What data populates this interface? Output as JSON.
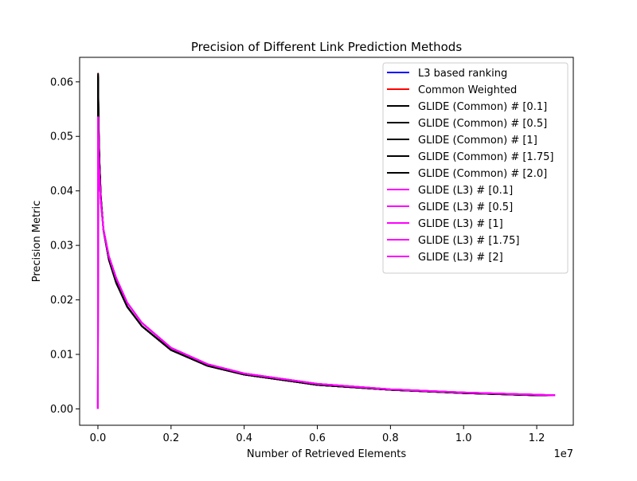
{
  "chart_data": {
    "type": "line",
    "title": "Precision of Different Link Prediction Methods",
    "xlabel": "Number of Retrieved Elements",
    "ylabel": "Precision Metric",
    "x_offset_label": "1e7",
    "x_scale": 10000000,
    "xlim": [
      -0.05,
      1.3
    ],
    "ylim": [
      -0.003,
      0.0645
    ],
    "xticks": [
      0.0,
      0.2,
      0.4,
      0.6,
      0.8,
      1.0,
      1.2
    ],
    "xtick_labels": [
      "0.0",
      "0.2",
      "0.4",
      "0.6",
      "0.8",
      "1.0",
      "1.2"
    ],
    "yticks": [
      0.0,
      0.01,
      0.02,
      0.03,
      0.04,
      0.05,
      0.06
    ],
    "ytick_labels": [
      "0.00",
      "0.01",
      "0.02",
      "0.03",
      "0.04",
      "0.05",
      "0.06"
    ],
    "grid": false,
    "legend_position": "top-right",
    "colors": {
      "L3 based ranking": "#0000ff",
      "Common Weighted": "#ff0000",
      "black": "#000000",
      "magenta": "#ff00ff"
    },
    "series": [
      {
        "name": "L3 based ranking",
        "color": "#0000ff",
        "x": [
          0,
          0.0006,
          0.002,
          0.004,
          0.008,
          0.015,
          0.03,
          0.05,
          0.08,
          0.12,
          0.2,
          0.3,
          0.4,
          0.6,
          0.8,
          1.0,
          1.2,
          1.25
        ],
        "y": [
          0,
          0.0535,
          0.047,
          0.043,
          0.038,
          0.033,
          0.028,
          0.024,
          0.0195,
          0.0158,
          0.0112,
          0.0082,
          0.0065,
          0.0046,
          0.0036,
          0.003,
          0.0026,
          0.0025
        ]
      },
      {
        "name": "Common Weighted",
        "color": "#ff0000",
        "x": [
          0,
          0.0005,
          0.002,
          0.004,
          0.008,
          0.015,
          0.03,
          0.05,
          0.08,
          0.12,
          0.2,
          0.3,
          0.4,
          0.6,
          0.8,
          1.0,
          1.2,
          1.25
        ],
        "y": [
          0,
          0.0615,
          0.052,
          0.046,
          0.039,
          0.033,
          0.0275,
          0.0232,
          0.0188,
          0.0152,
          0.0108,
          0.0079,
          0.0063,
          0.0044,
          0.0035,
          0.0029,
          0.0025,
          0.0025
        ]
      },
      {
        "name": "GLIDE (Common) # [0.1]",
        "color": "#000000",
        "x": [
          0,
          0.0005,
          0.002,
          0.004,
          0.008,
          0.015,
          0.03,
          0.05,
          0.08,
          0.12,
          0.2,
          0.3,
          0.4,
          0.6,
          0.8,
          1.0,
          1.2,
          1.25
        ],
        "y": [
          0,
          0.0615,
          0.052,
          0.046,
          0.039,
          0.033,
          0.0275,
          0.0232,
          0.0188,
          0.0152,
          0.0108,
          0.0079,
          0.0063,
          0.0044,
          0.0035,
          0.0029,
          0.0025,
          0.0025
        ]
      },
      {
        "name": "GLIDE (Common) # [0.5]",
        "color": "#000000",
        "x": [
          0,
          0.0005,
          0.002,
          0.004,
          0.008,
          0.015,
          0.03,
          0.05,
          0.08,
          0.12,
          0.2,
          0.3,
          0.4,
          0.6,
          0.8,
          1.0,
          1.2,
          1.25
        ],
        "y": [
          0,
          0.0612,
          0.0518,
          0.0458,
          0.0389,
          0.033,
          0.0275,
          0.0232,
          0.0188,
          0.0152,
          0.0108,
          0.0079,
          0.0063,
          0.0044,
          0.0035,
          0.0029,
          0.0025,
          0.0025
        ]
      },
      {
        "name": "GLIDE (Common) # [1]",
        "color": "#000000",
        "x": [
          0,
          0.0005,
          0.002,
          0.004,
          0.008,
          0.015,
          0.03,
          0.05,
          0.08,
          0.12,
          0.2,
          0.3,
          0.4,
          0.6,
          0.8,
          1.0,
          1.2,
          1.25
        ],
        "y": [
          0,
          0.061,
          0.0516,
          0.0457,
          0.0388,
          0.0329,
          0.0274,
          0.0231,
          0.0188,
          0.0152,
          0.0108,
          0.0079,
          0.0063,
          0.0044,
          0.0035,
          0.0029,
          0.0025,
          0.0025
        ]
      },
      {
        "name": "GLIDE (Common) # [1.75]",
        "color": "#000000",
        "x": [
          0,
          0.0005,
          0.002,
          0.004,
          0.008,
          0.015,
          0.03,
          0.05,
          0.08,
          0.12,
          0.2,
          0.3,
          0.4,
          0.6,
          0.8,
          1.0,
          1.2,
          1.25
        ],
        "y": [
          0,
          0.0608,
          0.0514,
          0.0455,
          0.0387,
          0.0328,
          0.0274,
          0.0231,
          0.0188,
          0.0152,
          0.0108,
          0.0079,
          0.0063,
          0.0044,
          0.0035,
          0.0029,
          0.0025,
          0.0025
        ]
      },
      {
        "name": "GLIDE (Common) # [2.0]",
        "color": "#000000",
        "x": [
          0,
          0.0005,
          0.002,
          0.004,
          0.008,
          0.015,
          0.03,
          0.05,
          0.08,
          0.12,
          0.2,
          0.3,
          0.4,
          0.6,
          0.8,
          1.0,
          1.2,
          1.25
        ],
        "y": [
          0,
          0.0606,
          0.0512,
          0.0454,
          0.0386,
          0.0328,
          0.0273,
          0.0231,
          0.0187,
          0.0152,
          0.0108,
          0.0079,
          0.0063,
          0.0044,
          0.0035,
          0.0029,
          0.0025,
          0.0025
        ]
      },
      {
        "name": "GLIDE (L3) # [0.1]",
        "color": "#ff00ff",
        "x": [
          0,
          0.0006,
          0.002,
          0.004,
          0.008,
          0.015,
          0.03,
          0.05,
          0.08,
          0.12,
          0.2,
          0.3,
          0.4,
          0.6,
          0.8,
          1.0,
          1.2,
          1.25
        ],
        "y": [
          0,
          0.0535,
          0.047,
          0.043,
          0.038,
          0.033,
          0.028,
          0.024,
          0.0195,
          0.0158,
          0.0112,
          0.0082,
          0.0065,
          0.0046,
          0.0036,
          0.003,
          0.0026,
          0.0025
        ]
      },
      {
        "name": "GLIDE (L3) # [0.5]",
        "color": "#ff00ff",
        "x": [
          0,
          0.0006,
          0.002,
          0.004,
          0.008,
          0.015,
          0.03,
          0.05,
          0.08,
          0.12,
          0.2,
          0.3,
          0.4,
          0.6,
          0.8,
          1.0,
          1.2,
          1.25
        ],
        "y": [
          0,
          0.0535,
          0.047,
          0.043,
          0.038,
          0.033,
          0.028,
          0.024,
          0.0195,
          0.0158,
          0.0112,
          0.0082,
          0.0065,
          0.0046,
          0.0036,
          0.003,
          0.0026,
          0.0025
        ]
      },
      {
        "name": "GLIDE (L3) # [1]",
        "color": "#ff00ff",
        "x": [
          0,
          0.0006,
          0.002,
          0.004,
          0.008,
          0.015,
          0.03,
          0.05,
          0.08,
          0.12,
          0.2,
          0.3,
          0.4,
          0.6,
          0.8,
          1.0,
          1.2,
          1.25
        ],
        "y": [
          0,
          0.0535,
          0.047,
          0.043,
          0.038,
          0.033,
          0.028,
          0.024,
          0.0195,
          0.0158,
          0.0112,
          0.0082,
          0.0065,
          0.0046,
          0.0036,
          0.003,
          0.0026,
          0.0025
        ]
      },
      {
        "name": "GLIDE (L3) # [1.75]",
        "color": "#ff00ff",
        "x": [
          0,
          0.0006,
          0.002,
          0.004,
          0.008,
          0.015,
          0.03,
          0.05,
          0.08,
          0.12,
          0.2,
          0.3,
          0.4,
          0.6,
          0.8,
          1.0,
          1.2,
          1.25
        ],
        "y": [
          0,
          0.0535,
          0.047,
          0.043,
          0.038,
          0.033,
          0.028,
          0.024,
          0.0195,
          0.0158,
          0.0112,
          0.0082,
          0.0065,
          0.0046,
          0.0036,
          0.003,
          0.0026,
          0.0025
        ]
      },
      {
        "name": "GLIDE (L3) # [2]",
        "color": "#ff00ff",
        "x": [
          0,
          0.0006,
          0.002,
          0.004,
          0.008,
          0.015,
          0.03,
          0.05,
          0.08,
          0.12,
          0.2,
          0.3,
          0.4,
          0.6,
          0.8,
          1.0,
          1.2,
          1.25
        ],
        "y": [
          0,
          0.0535,
          0.047,
          0.043,
          0.038,
          0.033,
          0.028,
          0.024,
          0.0195,
          0.0158,
          0.0112,
          0.0082,
          0.0065,
          0.0046,
          0.0036,
          0.003,
          0.0026,
          0.0025
        ]
      }
    ]
  }
}
